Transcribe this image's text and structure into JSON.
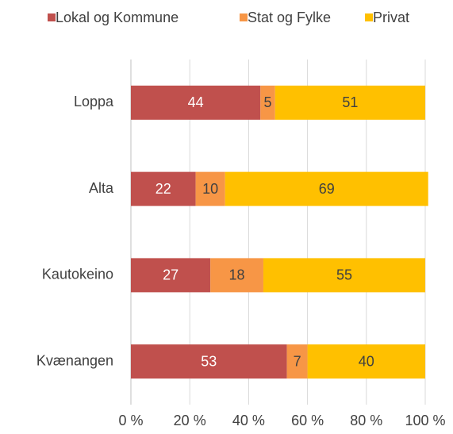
{
  "chart_data": {
    "type": "stacked_bar_horizontal",
    "categories": [
      "Loppa",
      "Alta",
      "Kautokeino",
      "Kvænangen"
    ],
    "series": [
      {
        "name": "Lokal og Kommune",
        "color": "#c0504d",
        "values": [
          44,
          22,
          27,
          53
        ]
      },
      {
        "name": "Stat og Fylke",
        "color": "#f79646",
        "values": [
          5,
          10,
          18,
          7
        ]
      },
      {
        "name": "Privat",
        "color": "#ffc000",
        "values": [
          51,
          69,
          55,
          40
        ]
      }
    ],
    "xlim": [
      0,
      100
    ],
    "xticks": [
      {
        "value": 0,
        "label": "0 %"
      },
      {
        "value": 20,
        "label": "20 %"
      },
      {
        "value": 40,
        "label": "40 %"
      },
      {
        "value": 60,
        "label": "60 %"
      },
      {
        "value": 80,
        "label": "80 %"
      },
      {
        "value": 100,
        "label": "100 %"
      }
    ],
    "grid": true,
    "legend": "top"
  }
}
